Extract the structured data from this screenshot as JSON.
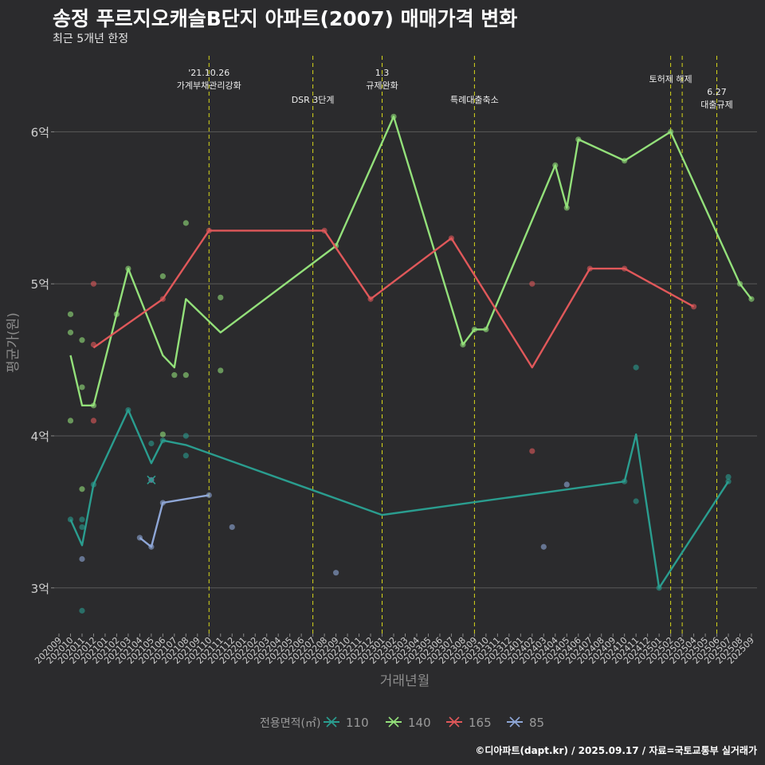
{
  "title": "송정 푸르지오캐슬B단지 아파트(2007) 매매가격 변화",
  "subtitle": "최근 5개년 한정",
  "caption": "©디아파트(dapt.kr) / 2025.09.17 / 자료=국토교통부 실거래가",
  "chart_data": {
    "type": "line",
    "title": "송정 푸르지오캐슬B단지 아파트(2007) 매매가격 변화",
    "subtitle": "최근 5개년 한정",
    "xlabel": "거래년월",
    "ylabel": "평균가(원)",
    "ylim": [
      2.7,
      6.5
    ],
    "yticks": [
      {
        "value": 3,
        "label": "3억"
      },
      {
        "value": 4,
        "label": "4억"
      },
      {
        "value": 5,
        "label": "5억"
      },
      {
        "value": 6,
        "label": "6억"
      }
    ],
    "categories": [
      "202009",
      "202010",
      "202011",
      "202012",
      "202101",
      "202102",
      "202103",
      "202104",
      "202105",
      "202106",
      "202107",
      "202108",
      "202109",
      "202110",
      "202111",
      "202112",
      "202201",
      "202202",
      "202203",
      "202204",
      "202205",
      "202206",
      "202207",
      "202208",
      "202209",
      "202210",
      "202211",
      "202212",
      "202301",
      "202302",
      "202303",
      "202304",
      "202305",
      "202306",
      "202307",
      "202308",
      "202309",
      "202310",
      "202311",
      "202312",
      "202401",
      "202402",
      "202403",
      "202404",
      "202405",
      "202406",
      "202407",
      "202408",
      "202409",
      "202410",
      "202411",
      "202412",
      "202501",
      "202502",
      "202503",
      "202504",
      "202505",
      "202506",
      "202507",
      "202508",
      "202509"
    ],
    "legend_title": "전용면적(㎡)",
    "legend_position": "bottom",
    "grid": true,
    "series": [
      {
        "name": "110",
        "color": "#2a9d8f",
        "marker": "x",
        "line": [
          [
            "202010",
            3.45
          ],
          [
            "202011",
            3.28
          ],
          [
            "202012",
            3.68
          ],
          [
            "202103",
            4.17
          ],
          [
            "202105",
            3.82
          ],
          [
            "202106",
            3.97
          ],
          [
            "202108",
            3.94
          ],
          [
            "202301",
            3.48
          ],
          [
            "202410",
            3.7
          ],
          [
            "202411",
            4.01
          ],
          [
            "202501",
            3.0
          ],
          [
            "202507",
            3.7
          ]
        ],
        "points": [
          [
            "202010",
            3.45
          ],
          [
            "202011",
            3.45
          ],
          [
            "202011",
            3.4
          ],
          [
            "202011",
            2.85
          ],
          [
            "202012",
            3.68
          ],
          [
            "202103",
            4.17
          ],
          [
            "202105",
            3.95
          ],
          [
            "202106",
            3.97
          ],
          [
            "202108",
            4.0
          ],
          [
            "202108",
            3.87
          ],
          [
            "202410",
            3.7
          ],
          [
            "202411",
            4.45
          ],
          [
            "202411",
            3.57
          ],
          [
            "202501",
            3.0
          ],
          [
            "202507",
            3.73
          ],
          [
            "202507",
            3.7
          ]
        ]
      },
      {
        "name": "140",
        "color": "#93e07a",
        "marker": "x",
        "line": [
          [
            "202010",
            4.53
          ],
          [
            "202011",
            4.2
          ],
          [
            "202012",
            4.2
          ],
          [
            "202102",
            4.8
          ],
          [
            "202103",
            5.1
          ],
          [
            "202106",
            4.53
          ],
          [
            "202107",
            4.45
          ],
          [
            "202108",
            4.9
          ],
          [
            "202111",
            4.68
          ],
          [
            "202209",
            5.25
          ],
          [
            "202302",
            6.1
          ],
          [
            "202308",
            4.6
          ],
          [
            "202309",
            4.7
          ],
          [
            "202310",
            4.7
          ],
          [
            "202404",
            5.78
          ],
          [
            "202405",
            5.5
          ],
          [
            "202406",
            5.95
          ],
          [
            "202410",
            5.81
          ],
          [
            "202502",
            6.0
          ],
          [
            "202508",
            5.0
          ],
          [
            "202509",
            4.9
          ]
        ],
        "points": [
          [
            "202010",
            4.8
          ],
          [
            "202010",
            4.68
          ],
          [
            "202010",
            4.1
          ],
          [
            "202011",
            4.63
          ],
          [
            "202011",
            4.32
          ],
          [
            "202011",
            3.65
          ],
          [
            "202012",
            4.2
          ],
          [
            "202102",
            4.8
          ],
          [
            "202103",
            5.1
          ],
          [
            "202106",
            5.05
          ],
          [
            "202106",
            4.01
          ],
          [
            "202107",
            4.4
          ],
          [
            "202108",
            5.4
          ],
          [
            "202108",
            4.4
          ],
          [
            "202111",
            4.91
          ],
          [
            "202111",
            4.43
          ],
          [
            "202209",
            5.25
          ],
          [
            "202302",
            6.1
          ],
          [
            "202308",
            4.6
          ],
          [
            "202309",
            4.7
          ],
          [
            "202310",
            4.7
          ],
          [
            "202404",
            5.78
          ],
          [
            "202405",
            5.5
          ],
          [
            "202406",
            5.95
          ],
          [
            "202410",
            5.81
          ],
          [
            "202502",
            6.0
          ],
          [
            "202508",
            5.0
          ],
          [
            "202509",
            4.9
          ]
        ]
      },
      {
        "name": "165",
        "color": "#e0585a",
        "marker": "x",
        "line": [
          [
            "202012",
            4.58
          ],
          [
            "202106",
            4.9
          ],
          [
            "202110",
            5.35
          ],
          [
            "202208",
            5.35
          ],
          [
            "202212",
            4.9
          ],
          [
            "202307",
            5.3
          ],
          [
            "202402",
            4.45
          ],
          [
            "202407",
            5.1
          ],
          [
            "202410",
            5.1
          ],
          [
            "202504",
            4.85
          ]
        ],
        "points": [
          [
            "202012",
            5.0
          ],
          [
            "202012",
            4.6
          ],
          [
            "202012",
            4.1
          ],
          [
            "202106",
            4.9
          ],
          [
            "202110",
            5.35
          ],
          [
            "202208",
            5.35
          ],
          [
            "202212",
            4.9
          ],
          [
            "202307",
            5.3
          ],
          [
            "202402",
            5.0
          ],
          [
            "202402",
            3.9
          ],
          [
            "202407",
            5.1
          ],
          [
            "202410",
            5.1
          ],
          [
            "202504",
            4.85
          ]
        ]
      },
      {
        "name": "85",
        "color": "#8ea6d6",
        "marker": "x",
        "line": [
          [
            "202104",
            3.33
          ],
          [
            "202105",
            3.27
          ],
          [
            "202106",
            3.56
          ],
          [
            "202110",
            3.61
          ]
        ],
        "points": [
          [
            "202011",
            3.19
          ],
          [
            "202104",
            3.33
          ],
          [
            "202105",
            3.27
          ],
          [
            "202105",
            3.71
          ],
          [
            "202106",
            3.56
          ],
          [
            "202110",
            3.61
          ],
          [
            "202112",
            3.4
          ],
          [
            "202209",
            3.1
          ],
          [
            "202403",
            3.27
          ],
          [
            "202405",
            3.68
          ]
        ]
      }
    ],
    "events": [
      {
        "month": "202110",
        "lines": [
          "'21.10.26",
          "가계부채관리강화"
        ]
      },
      {
        "month": "202207",
        "lines": [
          "DSR 3단계"
        ]
      },
      {
        "month": "202301",
        "lines": [
          "1.3",
          "규제완화"
        ]
      },
      {
        "month": "202309",
        "lines": [
          "특례대출축소"
        ]
      },
      {
        "month": "202502",
        "lines": [
          "토허제 해제"
        ]
      },
      {
        "month": "202503",
        "lines": []
      },
      {
        "month": "202506",
        "lines": [
          "6.27",
          "대출규제"
        ]
      }
    ]
  }
}
